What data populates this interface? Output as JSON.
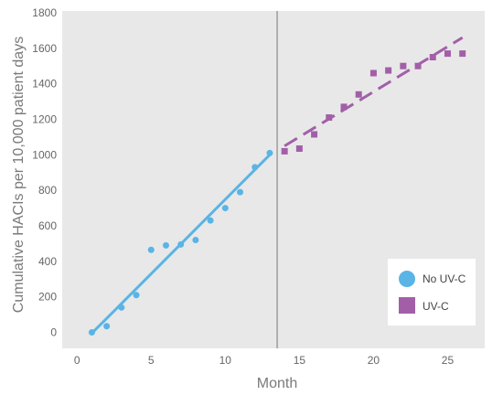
{
  "chart_data": {
    "type": "scatter",
    "title": "",
    "xlabel": "Month",
    "ylabel": "Cumulative HACIs per 10,000 patient days",
    "xlim": [
      -1,
      27.5
    ],
    "ylim": [
      -90,
      1810
    ],
    "x_ticks": [
      0,
      5,
      10,
      15,
      20,
      25
    ],
    "y_ticks": [
      0,
      200,
      400,
      600,
      800,
      1000,
      1200,
      1400,
      1600,
      1800
    ],
    "grid": false,
    "background": "#e8e8e8",
    "divider_x": 13.5,
    "legend_position": "bottom-right",
    "series": [
      {
        "name": "No UV-C",
        "color": "#5ab4e5",
        "marker": "circle",
        "x": [
          1,
          2,
          3,
          4,
          5,
          6,
          7,
          8,
          9,
          10,
          11,
          12,
          13
        ],
        "y": [
          0,
          35,
          140,
          210,
          465,
          490,
          495,
          520,
          630,
          700,
          790,
          930,
          1010
        ],
        "trendline": {
          "style": "solid",
          "x": [
            1,
            13
          ],
          "y": [
            -5,
            1000
          ]
        }
      },
      {
        "name": "UV-C",
        "color": "#a25fa8",
        "marker": "square",
        "x": [
          14,
          15,
          16,
          17,
          18,
          19,
          20,
          21,
          22,
          23,
          24,
          25,
          26
        ],
        "y": [
          1020,
          1035,
          1115,
          1210,
          1270,
          1340,
          1460,
          1475,
          1500,
          1500,
          1550,
          1570,
          1570
        ],
        "trendline": {
          "style": "dashed",
          "x": [
            14,
            26
          ],
          "y": [
            1050,
            1660
          ]
        }
      }
    ]
  }
}
